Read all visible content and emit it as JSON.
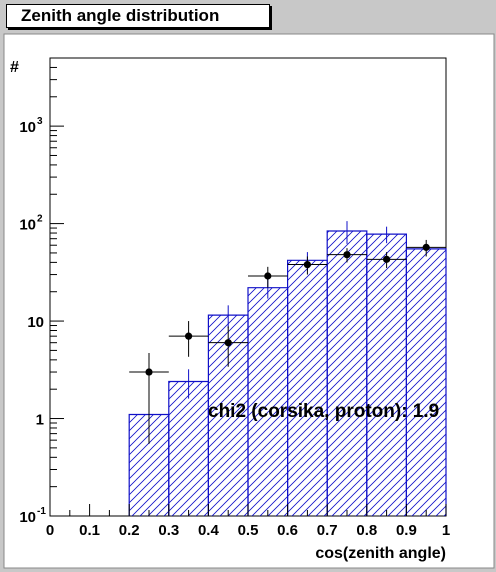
{
  "chart_data": {
    "type": "histogram",
    "title": "Zenith angle distribution",
    "xlabel": "cos(zenith angle)",
    "ylabel": "#",
    "xlim": [
      0,
      1
    ],
    "ylim": [
      0.1,
      5000
    ],
    "yscale": "log",
    "x_ticks": [
      "0",
      "0.1",
      "0.2",
      "0.3",
      "0.4",
      "0.5",
      "0.6",
      "0.7",
      "0.8",
      "0.9",
      "1"
    ],
    "y_tick_labels": [
      {
        "value": 0.1,
        "base": "10",
        "exp": "-1"
      },
      {
        "value": 1,
        "base": "1",
        "exp": ""
      },
      {
        "value": 10,
        "base": "10",
        "exp": ""
      },
      {
        "value": 100,
        "base": "10",
        "exp": "2"
      },
      {
        "value": 1000,
        "base": "10",
        "exp": "3"
      }
    ],
    "simulation": {
      "bin_edges": [
        0,
        0.1,
        0.2,
        0.3,
        0.4,
        0.5,
        0.6,
        0.7,
        0.8,
        0.9,
        1.0
      ],
      "values": [
        0,
        0,
        1.1,
        2.4,
        11.5,
        22,
        42,
        84,
        78,
        55
      ],
      "errors": [
        0,
        0,
        0,
        0.8,
        3,
        5,
        9,
        22,
        15,
        0
      ],
      "color": "#1010c8",
      "fill": "hatched"
    },
    "data": {
      "x": [
        0.25,
        0.35,
        0.45,
        0.55,
        0.65,
        0.75,
        0.85,
        0.95
      ],
      "y": [
        3,
        7,
        6,
        29,
        38,
        48,
        43,
        57
      ],
      "ylow": [
        0.55,
        4.3,
        3.4,
        22,
        30,
        40,
        35,
        46
      ],
      "yhigh": [
        4.7,
        10,
        8.8,
        36,
        46,
        56,
        51,
        68
      ],
      "color": "#000000"
    },
    "annotation": "chi2 (corsika, proton): 1.9"
  }
}
